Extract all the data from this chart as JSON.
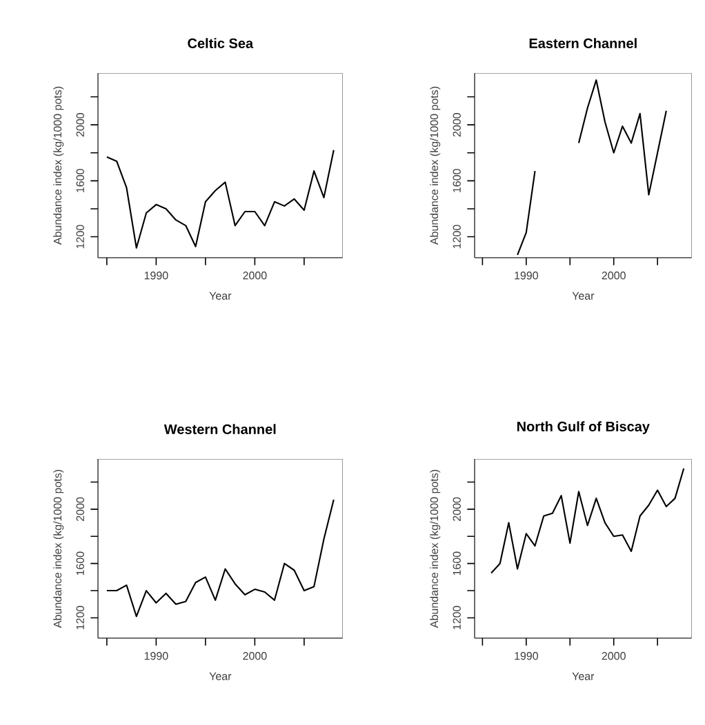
{
  "chart_data": [
    {
      "type": "line",
      "title": "Celtic Sea",
      "xlabel": "Year",
      "ylabel": "Abundance index (kg/1000 pots)",
      "xlim": [
        1984.1,
        2008.9
      ],
      "ylim": [
        1050,
        2370
      ],
      "xticks": [
        1990,
        2000
      ],
      "yticks": [
        1200,
        1600,
        2000
      ],
      "x": [
        1985,
        1986,
        1987,
        1988,
        1989,
        1990,
        1991,
        1992,
        1993,
        1994,
        1995,
        1996,
        1997,
        1998,
        1999,
        2000,
        2001,
        2002,
        2003,
        2004,
        2005,
        2006,
        2007,
        2008
      ],
      "series": [
        {
          "color": "#000000",
          "values": [
            1770,
            1740,
            1550,
            1120,
            1370,
            1430,
            1400,
            1320,
            1280,
            1130,
            1450,
            1530,
            1590,
            1280,
            1380,
            1380,
            1280,
            1450,
            1420,
            1470,
            1390,
            1670,
            1480,
            1820
          ]
        }
      ]
    },
    {
      "type": "line",
      "title": "Eastern Channel",
      "xlabel": "Year",
      "ylabel": "Abundance index (kg/1000 pots)",
      "xlim": [
        1984.1,
        2008.9
      ],
      "ylim": [
        1050,
        2370
      ],
      "xticks": [
        1990,
        2000
      ],
      "yticks": [
        1200,
        1600,
        2000
      ],
      "x": [
        1989,
        1990,
        1991
      ],
      "series": [
        {
          "color": "#000000",
          "values": [
            1070,
            1230,
            1670
          ]
        },
        {
          "color": "#000000",
          "x": [
            1996,
            1997,
            1998,
            1999,
            2000,
            2001,
            2002,
            2003,
            2004,
            2005,
            2006
          ],
          "values": [
            1870,
            2120,
            2320,
            2020,
            1800,
            1990,
            1870,
            2080,
            1500,
            1800,
            2100
          ]
        }
      ]
    },
    {
      "type": "line",
      "title": "Western Channel",
      "xlabel": "Year",
      "ylabel": "Abundance index (kg/1000 pots)",
      "xlim": [
        1984.1,
        2008.9
      ],
      "ylim": [
        1050,
        2370
      ],
      "xticks": [
        1990,
        2000
      ],
      "yticks": [
        1200,
        1600,
        2000
      ],
      "x": [
        1985,
        1986,
        1987,
        1988,
        1989,
        1990,
        1991,
        1992,
        1993,
        1994,
        1995,
        1996,
        1997,
        1998,
        1999,
        2000,
        2001,
        2002,
        2003,
        2004,
        2005,
        2006,
        2007,
        2008
      ],
      "series": [
        {
          "color": "#000000",
          "values": [
            1400,
            1400,
            1440,
            1210,
            1400,
            1310,
            1380,
            1300,
            1320,
            1460,
            1500,
            1330,
            1560,
            1450,
            1370,
            1410,
            1390,
            1330,
            1600,
            1550,
            1400,
            1430,
            1780,
            2070
          ]
        }
      ]
    },
    {
      "type": "line",
      "title": "North Gulf of Biscay",
      "xlabel": "Year",
      "ylabel": "Abundance index (kg/1000 pots)",
      "xlim": [
        1984.1,
        2008.9
      ],
      "ylim": [
        1050,
        2370
      ],
      "xticks": [
        1990,
        2000
      ],
      "yticks": [
        1200,
        1600,
        2000
      ],
      "x": [
        1986,
        1987,
        1988,
        1989,
        1990,
        1991,
        1992,
        1993,
        1994,
        1995,
        1996,
        1997,
        1998,
        1999,
        2000,
        2001,
        2002,
        2003,
        2004,
        2005,
        2006,
        2007,
        2008
      ],
      "series": [
        {
          "color": "#000000",
          "values": [
            1530,
            1600,
            1900,
            1560,
            1820,
            1730,
            1950,
            1970,
            2100,
            1750,
            2130,
            1880,
            2080,
            1900,
            1800,
            1810,
            1690,
            1950,
            2030,
            2140,
            2020,
            2080,
            2300
          ]
        }
      ]
    }
  ]
}
